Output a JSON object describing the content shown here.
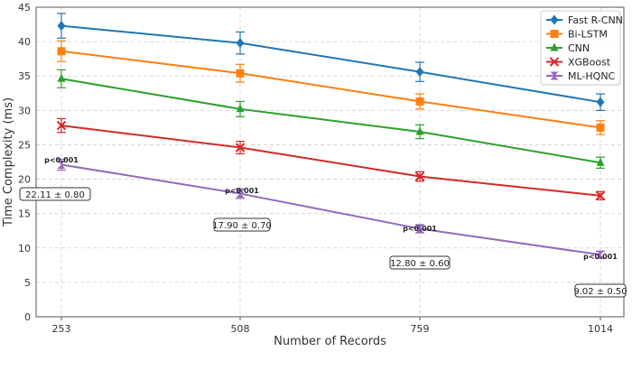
{
  "chart_data": {
    "type": "line",
    "title": "",
    "xlabel": "Number of Records",
    "ylabel": "Time Complexity (ms)",
    "categories": [
      "253",
      "508",
      "759",
      "1014"
    ],
    "yticks": [
      "0",
      "5",
      "10",
      "15",
      "20",
      "25",
      "30",
      "35",
      "40",
      "45"
    ],
    "ylim": [
      0,
      45
    ],
    "grid": true,
    "legend_position": "top-right",
    "series": [
      {
        "name": "Fast R-CNN",
        "color": "#1f77b4",
        "marker": "diamond",
        "values": [
          42.3,
          39.8,
          35.6,
          31.2
        ],
        "errors": [
          1.8,
          1.6,
          1.4,
          1.2
        ]
      },
      {
        "name": "Bi-LSTM",
        "color": "#ff7f0e",
        "marker": "square",
        "values": [
          38.6,
          35.4,
          31.3,
          27.5
        ],
        "errors": [
          1.5,
          1.3,
          1.1,
          1.0
        ]
      },
      {
        "name": "CNN",
        "color": "#2ca02c",
        "marker": "triangle-up",
        "values": [
          34.6,
          30.2,
          26.9,
          22.4
        ],
        "errors": [
          1.3,
          1.1,
          1.0,
          0.8
        ]
      },
      {
        "name": "XGBoost",
        "color": "#d62728",
        "marker": "x",
        "values": [
          27.8,
          24.6,
          20.4,
          17.6
        ],
        "errors": [
          1.0,
          0.9,
          0.7,
          0.6
        ]
      },
      {
        "name": "ML-HQNC",
        "color": "#9467bd",
        "marker": "hourglass",
        "values": [
          22.11,
          17.9,
          12.8,
          9.02
        ],
        "errors": [
          0.8,
          0.7,
          0.6,
          0.5
        ]
      }
    ],
    "annotations": [
      {
        "category": "253",
        "pvalue": "p<0.001",
        "label": "22.11 ± 0.80"
      },
      {
        "category": "508",
        "pvalue": "p<0.001",
        "label": "17.90 ± 0.70"
      },
      {
        "category": "759",
        "pvalue": "p<0.001",
        "label": "12.80 ± 0.60"
      },
      {
        "category": "1014",
        "pvalue": "p<0.001",
        "label": "9.02 ± 0.50"
      }
    ]
  }
}
